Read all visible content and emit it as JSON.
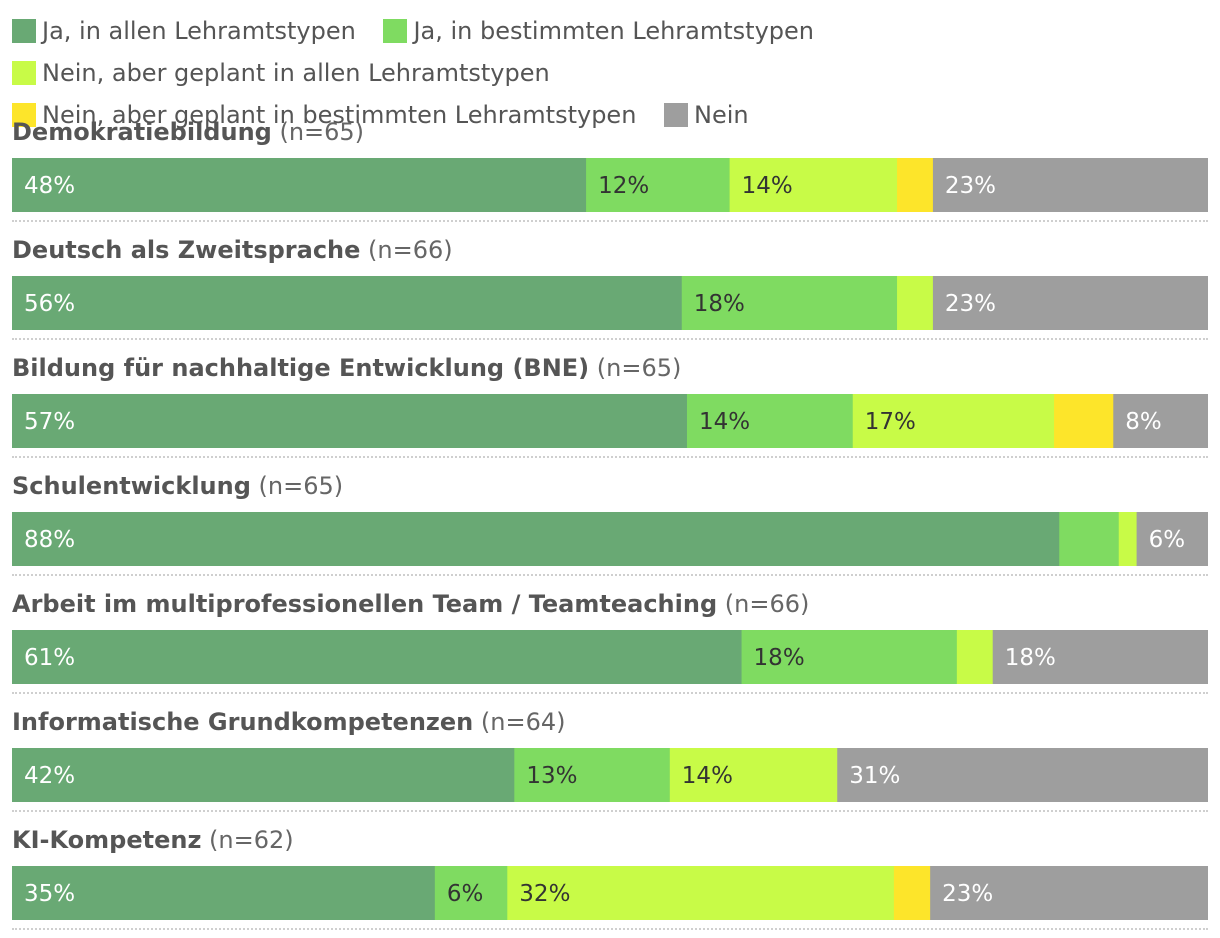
{
  "legend": {
    "items": [
      {
        "label": "Ja, in allen Lehramtstypen",
        "color": "#69a974"
      },
      {
        "label": "Ja, in bestimmten Lehramtstypen",
        "color": "#7fdb61"
      },
      {
        "label": "Nein, aber geplant in allen Lehramtstypen",
        "color": "#c8fb47"
      },
      {
        "label": "Nein, aber geplant in bestimmten Lehramtstypen",
        "color": "#fde52a"
      },
      {
        "label": "Nein",
        "color": "#9e9e9e"
      }
    ]
  },
  "chart_data": {
    "type": "bar",
    "orientation": "horizontal",
    "stacked": true,
    "normalized_percent": true,
    "series_names": [
      "Ja, in allen Lehramtstypen",
      "Ja, in bestimmten Lehramtstypen",
      "Nein, aber geplant in allen Lehramtstypen",
      "Nein, aber geplant in bestimmten Lehramtstypen",
      "Nein"
    ],
    "colors": [
      "#69a974",
      "#7fdb61",
      "#c8fb47",
      "#fde52a",
      "#9e9e9e"
    ],
    "label_colors": [
      "#ffffff",
      "#333333",
      "#333333",
      "#333333",
      "#ffffff"
    ],
    "rows": [
      {
        "name": "Demokratiebildung",
        "n": "(n=65)",
        "values": [
          48,
          12,
          14,
          3,
          23
        ],
        "labels": [
          "48%",
          "12%",
          "14%",
          "",
          "23%"
        ]
      },
      {
        "name": "Deutsch als Zweitsprache",
        "n": "(n=66)",
        "values": [
          56,
          18,
          3,
          0,
          23
        ],
        "labels": [
          "56%",
          "18%",
          "",
          "",
          "23%"
        ]
      },
      {
        "name": "Bildung für nachhaltige Entwicklung (BNE)",
        "n": "(n=65)",
        "values": [
          57,
          14,
          17,
          5,
          8
        ],
        "labels": [
          "57%",
          "14%",
          "17%",
          "",
          "8%"
        ]
      },
      {
        "name": "Schulentwicklung",
        "n": "(n=65)",
        "values": [
          88,
          5,
          1.5,
          0,
          6
        ],
        "labels": [
          "88%",
          "",
          "",
          "",
          "6%"
        ]
      },
      {
        "name": "Arbeit im multiprofessionellen Team / Teamteaching",
        "n": "(n=66)",
        "values": [
          61,
          18,
          3,
          0,
          18
        ],
        "labels": [
          "61%",
          "18%",
          "",
          "",
          "18%"
        ]
      },
      {
        "name": "Informatische Grundkompetenzen",
        "n": "(n=64)",
        "values": [
          42,
          13,
          14,
          0,
          31
        ],
        "labels": [
          "42%",
          "13%",
          "14%",
          "",
          "31%"
        ]
      },
      {
        "name": "KI-Kompetenz",
        "n": "(n=62)",
        "values": [
          35,
          6,
          32,
          3,
          23
        ],
        "labels": [
          "35%",
          "6%",
          "32%",
          "",
          "23%"
        ]
      }
    ]
  }
}
